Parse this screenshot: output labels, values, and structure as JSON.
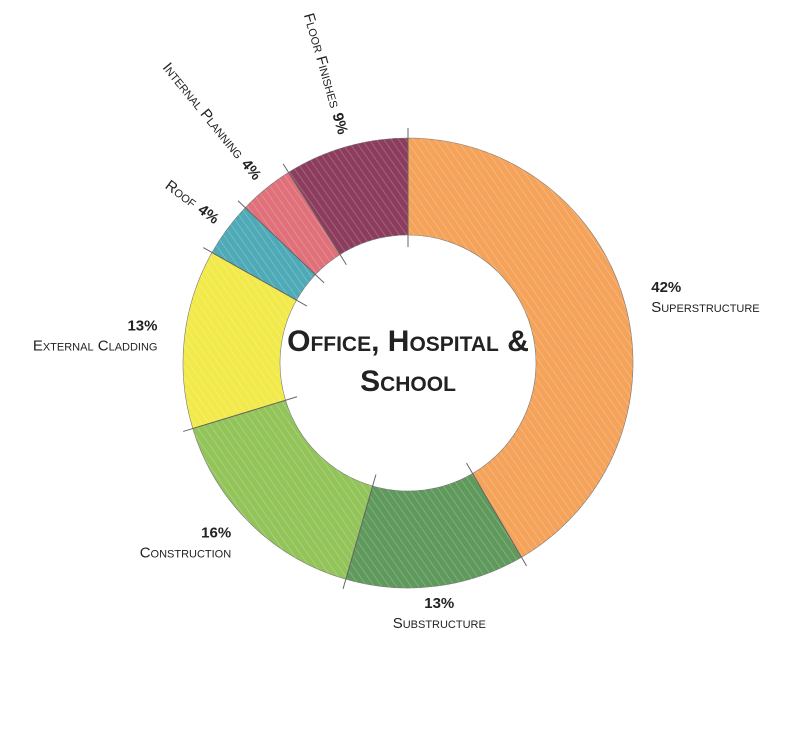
{
  "chart_data": {
    "type": "donut",
    "title": "Office, Hospital & School",
    "categories": [
      "Superstructure",
      "Substructure",
      "Construction",
      "External Cladding",
      "Roof",
      "Internal Planning",
      "Floor Finishes"
    ],
    "values": [
      42,
      13,
      16,
      13,
      4,
      4,
      9
    ],
    "value_labels": [
      "42%",
      "13%",
      "16%",
      "13%",
      "4%",
      "4%",
      "9%"
    ],
    "colors": [
      "#f5a35a",
      "#5f9a5c",
      "#93c45a",
      "#f2ea4a",
      "#4faab8",
      "#e0707a",
      "#8c3d5e"
    ]
  }
}
